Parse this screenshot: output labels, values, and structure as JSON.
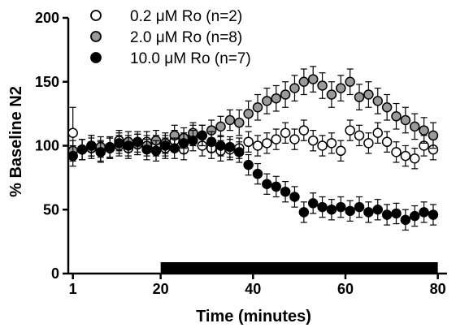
{
  "chart_data": {
    "type": "scatter",
    "xlabel": "Time (minutes)",
    "ylabel": "% Baseline N2",
    "xlim": [
      0,
      82
    ],
    "ylim": [
      0,
      200
    ],
    "xticks": [
      1,
      20,
      40,
      60,
      80
    ],
    "yticks": [
      0,
      50,
      100,
      150,
      200
    ],
    "legend_position": "top-left",
    "grid": false,
    "drug_bar": {
      "x_start": 20,
      "x_end": 80
    },
    "series": [
      {
        "name": "0.2 μM Ro (n=2)",
        "fill": "#ffffff",
        "x": [
          1,
          3,
          5,
          7,
          9,
          11,
          13,
          15,
          17,
          19,
          21,
          23,
          25,
          27,
          29,
          31,
          33,
          35,
          37,
          39,
          41,
          43,
          45,
          47,
          49,
          51,
          53,
          55,
          57,
          59,
          61,
          63,
          65,
          67,
          69,
          71,
          73,
          75,
          77,
          79
        ],
        "y": [
          110,
          97,
          100,
          96,
          99,
          104,
          98,
          101,
          103,
          100,
          98,
          104,
          97,
          108,
          100,
          98,
          96,
          97,
          98,
          103,
          100,
          102,
          105,
          110,
          105,
          112,
          104,
          100,
          102,
          96,
          112,
          108,
          102,
          110,
          103,
          95,
          92,
          90,
          100,
          97
        ],
        "err": [
          20,
          8,
          8,
          8,
          8,
          8,
          8,
          8,
          8,
          8,
          8,
          8,
          8,
          8,
          8,
          8,
          8,
          8,
          8,
          8,
          8,
          8,
          8,
          8,
          8,
          8,
          8,
          8,
          8,
          8,
          8,
          8,
          8,
          8,
          8,
          8,
          8,
          8,
          8,
          8
        ]
      },
      {
        "name": "2.0 μM Ro (n=8)",
        "fill": "#9a9a9a",
        "x": [
          1,
          3,
          5,
          7,
          9,
          11,
          13,
          15,
          17,
          19,
          21,
          23,
          25,
          27,
          29,
          31,
          33,
          35,
          37,
          39,
          41,
          43,
          45,
          47,
          49,
          51,
          53,
          55,
          57,
          59,
          61,
          63,
          65,
          67,
          69,
          71,
          73,
          75,
          77,
          79
        ],
        "y": [
          96,
          97,
          98,
          99,
          98,
          100,
          103,
          101,
          100,
          104,
          102,
          108,
          106,
          110,
          108,
          112,
          115,
          120,
          118,
          125,
          130,
          135,
          137,
          140,
          145,
          150,
          152,
          147,
          140,
          145,
          150,
          138,
          140,
          135,
          130,
          123,
          120,
          115,
          112,
          108
        ],
        "err": [
          8,
          8,
          8,
          8,
          8,
          8,
          8,
          8,
          8,
          8,
          8,
          8,
          8,
          8,
          8,
          8,
          8,
          8,
          10,
          10,
          10,
          10,
          10,
          10,
          10,
          10,
          10,
          10,
          10,
          10,
          10,
          10,
          10,
          10,
          10,
          10,
          10,
          10,
          10,
          10
        ]
      },
      {
        "name": "10.0 μM Ro (n=7)",
        "fill": "#000000",
        "x": [
          1,
          3,
          5,
          7,
          9,
          11,
          13,
          15,
          17,
          19,
          21,
          23,
          25,
          27,
          29,
          31,
          33,
          35,
          37,
          39,
          41,
          43,
          45,
          47,
          49,
          51,
          53,
          55,
          57,
          59,
          61,
          63,
          65,
          67,
          69,
          71,
          73,
          75,
          77,
          79
        ],
        "y": [
          92,
          97,
          100,
          95,
          98,
          102,
          100,
          103,
          97,
          96,
          100,
          98,
          102,
          104,
          108,
          103,
          100,
          99,
          95,
          85,
          78,
          70,
          68,
          64,
          60,
          48,
          55,
          52,
          50,
          52,
          49,
          52,
          48,
          50,
          46,
          47,
          42,
          45,
          48,
          46
        ],
        "err": [
          8,
          8,
          8,
          8,
          8,
          8,
          8,
          8,
          8,
          8,
          8,
          8,
          8,
          8,
          8,
          8,
          8,
          8,
          8,
          8,
          8,
          8,
          8,
          8,
          8,
          8,
          8,
          8,
          8,
          8,
          8,
          8,
          8,
          8,
          8,
          8,
          8,
          8,
          8,
          8
        ]
      }
    ]
  }
}
